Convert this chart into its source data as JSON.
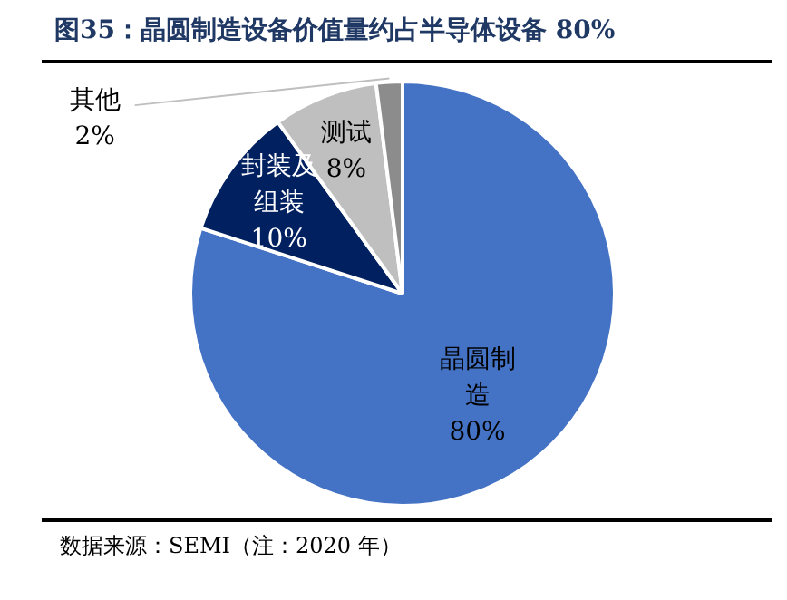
{
  "chart_data": {
    "type": "pie",
    "title": "图35：晶圆制造设备价值量约占半导体设备 80%",
    "categories": [
      "晶圆制造",
      "封装及组装",
      "测试",
      "其他"
    ],
    "values": [
      80,
      10,
      8,
      2
    ],
    "colors": [
      "#4472c4",
      "#002060",
      "#bfbfbf",
      "#8c8c8c"
    ],
    "value_labels": [
      "80%",
      "10%",
      "8%",
      "2%"
    ],
    "annotations": [
      "数据来源：SEMI（注：2020 年）"
    ]
  }
}
